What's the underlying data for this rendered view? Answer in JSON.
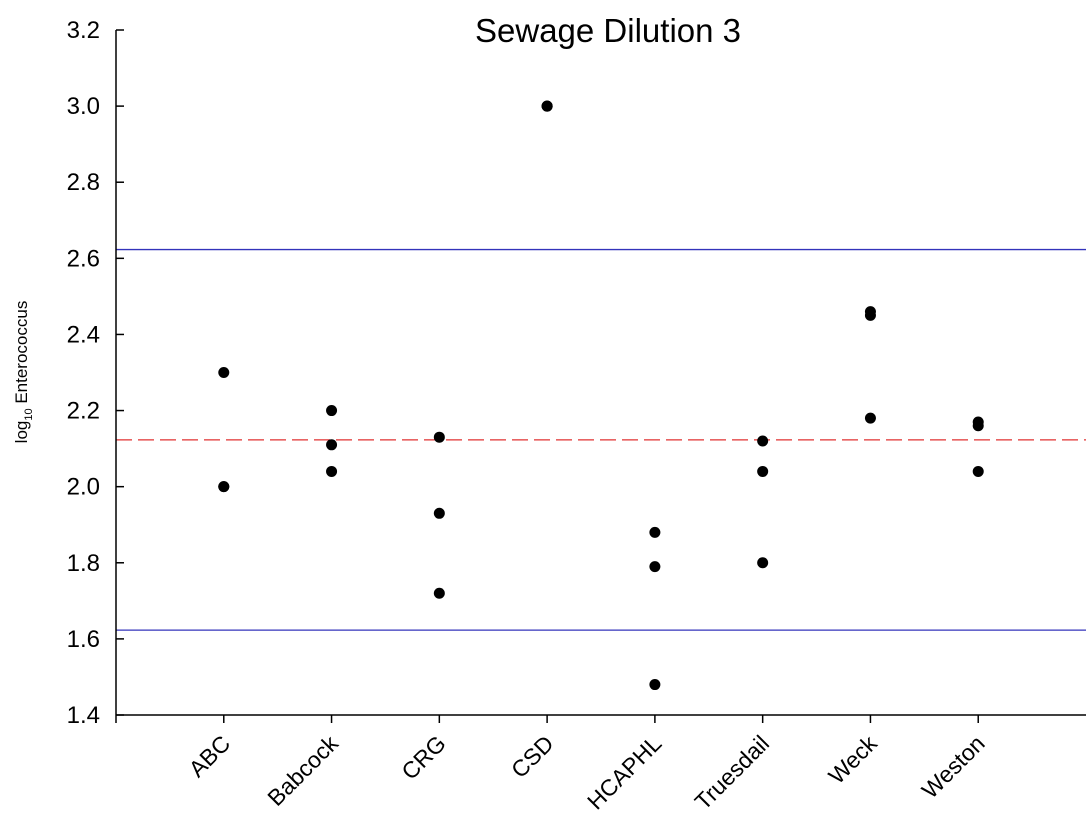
{
  "chart_data": {
    "type": "scatter",
    "title": "Sewage Dilution 3",
    "xlabel": "",
    "ylabel": {
      "prefix": "log",
      "subscript": "10",
      "suffix": " Enterococcus"
    },
    "ylim": [
      1.4,
      3.2
    ],
    "yticks": [
      "1.4",
      "1.6",
      "1.8",
      "2.0",
      "2.2",
      "2.4",
      "2.6",
      "2.8",
      "3.0",
      "3.2"
    ],
    "categories": [
      "ABC",
      "Babcock",
      "CRG",
      "CSD",
      "HCAPHL",
      "Truesdail",
      "Weck",
      "Weston"
    ],
    "points": [
      [
        2.3,
        2.0,
        2.0
      ],
      [
        2.2,
        2.11,
        2.04
      ],
      [
        2.13,
        1.93,
        1.72
      ],
      [
        3.0,
        3.0,
        3.0
      ],
      [
        1.88,
        1.79,
        1.48
      ],
      [
        2.12,
        2.04,
        1.8
      ],
      [
        2.46,
        2.45,
        2.18
      ],
      [
        2.17,
        2.16,
        2.04
      ]
    ],
    "reference_lines": [
      {
        "value": 2.623,
        "color": "#3333bb",
        "style": "solid"
      },
      {
        "value": 2.123,
        "color": "#e03030",
        "style": "dashed"
      },
      {
        "value": 1.623,
        "color": "#3333bb",
        "style": "solid"
      }
    ],
    "point_color": "#000000",
    "grid": false,
    "legend": "none"
  }
}
